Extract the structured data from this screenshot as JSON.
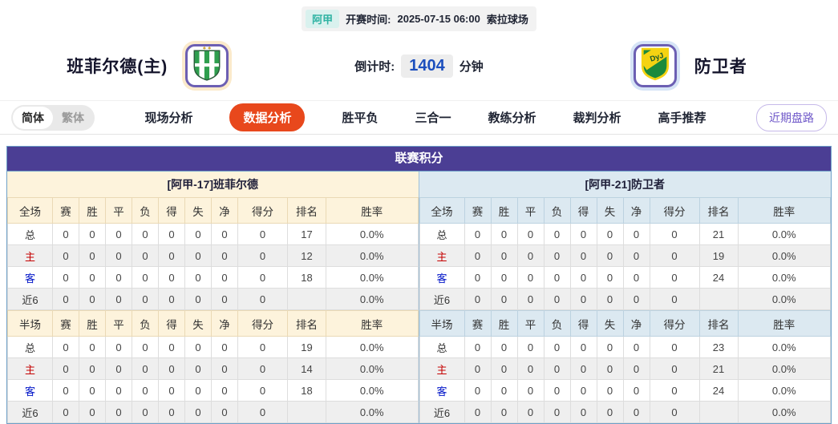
{
  "header": {
    "league_badge": "阿甲",
    "kickoff_label": "开赛时间:",
    "kickoff_time": "2025-07-15 06:00",
    "venue": "索拉球场",
    "home_team": "班菲尔德(主)",
    "away_team": "防卫者",
    "countdown_label": "倒计时:",
    "countdown_value": "1404",
    "countdown_unit": "分钟"
  },
  "nav": {
    "lang_simplified": "简体",
    "lang_traditional": "繁体",
    "tabs": [
      {
        "name": "live-analysis",
        "label": "现场分析",
        "active": false
      },
      {
        "name": "data-analysis",
        "label": "数据分析",
        "active": true
      },
      {
        "name": "win-draw-loss",
        "label": "胜平负",
        "active": false
      },
      {
        "name": "three-in-one",
        "label": "三合一",
        "active": false
      },
      {
        "name": "coach-analysis",
        "label": "教练分析",
        "active": false
      },
      {
        "name": "referee-analysis",
        "label": "裁判分析",
        "active": false
      },
      {
        "name": "expert-picks",
        "label": "高手推荐",
        "active": false
      }
    ],
    "recent_trend_button": "近期盘路"
  },
  "league_table": {
    "title": "联赛积分",
    "columns_full": [
      "全场",
      "赛",
      "胜",
      "平",
      "负",
      "得",
      "失",
      "净",
      "得分",
      "排名",
      "胜率"
    ],
    "columns_half": [
      "半场",
      "赛",
      "胜",
      "平",
      "负",
      "得",
      "失",
      "净",
      "得分",
      "排名",
      "胜率"
    ],
    "home": {
      "team_label": "[阿甲-17]班菲尔德",
      "full_rows": [
        {
          "label": "总",
          "type": "total",
          "values": [
            "0",
            "0",
            "0",
            "0",
            "0",
            "0",
            "0",
            "0"
          ],
          "rank": "17",
          "win_rate": "0.0%"
        },
        {
          "label": "主",
          "type": "home",
          "values": [
            "0",
            "0",
            "0",
            "0",
            "0",
            "0",
            "0",
            "0"
          ],
          "rank": "12",
          "win_rate": "0.0%"
        },
        {
          "label": "客",
          "type": "away",
          "values": [
            "0",
            "0",
            "0",
            "0",
            "0",
            "0",
            "0",
            "0"
          ],
          "rank": "18",
          "win_rate": "0.0%"
        },
        {
          "label": "近6",
          "type": "recent",
          "values": [
            "0",
            "0",
            "0",
            "0",
            "0",
            "0",
            "0",
            "0"
          ],
          "rank": "",
          "win_rate": "0.0%"
        }
      ],
      "half_rows": [
        {
          "label": "总",
          "type": "total",
          "values": [
            "0",
            "0",
            "0",
            "0",
            "0",
            "0",
            "0",
            "0"
          ],
          "rank": "19",
          "win_rate": "0.0%"
        },
        {
          "label": "主",
          "type": "home",
          "values": [
            "0",
            "0",
            "0",
            "0",
            "0",
            "0",
            "0",
            "0"
          ],
          "rank": "14",
          "win_rate": "0.0%"
        },
        {
          "label": "客",
          "type": "away",
          "values": [
            "0",
            "0",
            "0",
            "0",
            "0",
            "0",
            "0",
            "0"
          ],
          "rank": "18",
          "win_rate": "0.0%"
        },
        {
          "label": "近6",
          "type": "recent",
          "values": [
            "0",
            "0",
            "0",
            "0",
            "0",
            "0",
            "0",
            "0"
          ],
          "rank": "",
          "win_rate": "0.0%"
        }
      ]
    },
    "away": {
      "team_label": "[阿甲-21]防卫者",
      "full_rows": [
        {
          "label": "总",
          "type": "total",
          "values": [
            "0",
            "0",
            "0",
            "0",
            "0",
            "0",
            "0",
            "0"
          ],
          "rank": "21",
          "win_rate": "0.0%"
        },
        {
          "label": "主",
          "type": "home",
          "values": [
            "0",
            "0",
            "0",
            "0",
            "0",
            "0",
            "0",
            "0"
          ],
          "rank": "19",
          "win_rate": "0.0%"
        },
        {
          "label": "客",
          "type": "away",
          "values": [
            "0",
            "0",
            "0",
            "0",
            "0",
            "0",
            "0",
            "0"
          ],
          "rank": "24",
          "win_rate": "0.0%"
        },
        {
          "label": "近6",
          "type": "recent",
          "values": [
            "0",
            "0",
            "0",
            "0",
            "0",
            "0",
            "0",
            "0"
          ],
          "rank": "",
          "win_rate": "0.0%"
        }
      ],
      "half_rows": [
        {
          "label": "总",
          "type": "total",
          "values": [
            "0",
            "0",
            "0",
            "0",
            "0",
            "0",
            "0",
            "0"
          ],
          "rank": "23",
          "win_rate": "0.0%"
        },
        {
          "label": "主",
          "type": "home",
          "values": [
            "0",
            "0",
            "0",
            "0",
            "0",
            "0",
            "0",
            "0"
          ],
          "rank": "21",
          "win_rate": "0.0%"
        },
        {
          "label": "客",
          "type": "away",
          "values": [
            "0",
            "0",
            "0",
            "0",
            "0",
            "0",
            "0",
            "0"
          ],
          "rank": "24",
          "win_rate": "0.0%"
        },
        {
          "label": "近6",
          "type": "recent",
          "values": [
            "0",
            "0",
            "0",
            "0",
            "0",
            "0",
            "0",
            "0"
          ],
          "rank": "",
          "win_rate": "0.0%"
        }
      ]
    }
  },
  "colors": {
    "card_title_bg": "#4b3e94",
    "active_tab_bg": "#e8481c",
    "home_panel_bg": "#fdf3dc",
    "away_panel_bg": "#dce9f1",
    "home_row_label": "#c40000",
    "away_row_label": "#0014c8",
    "countdown_value": "#1c4fbe",
    "league_badge": "#2fb3a3",
    "recent_trend_button": "#6f58c9"
  }
}
